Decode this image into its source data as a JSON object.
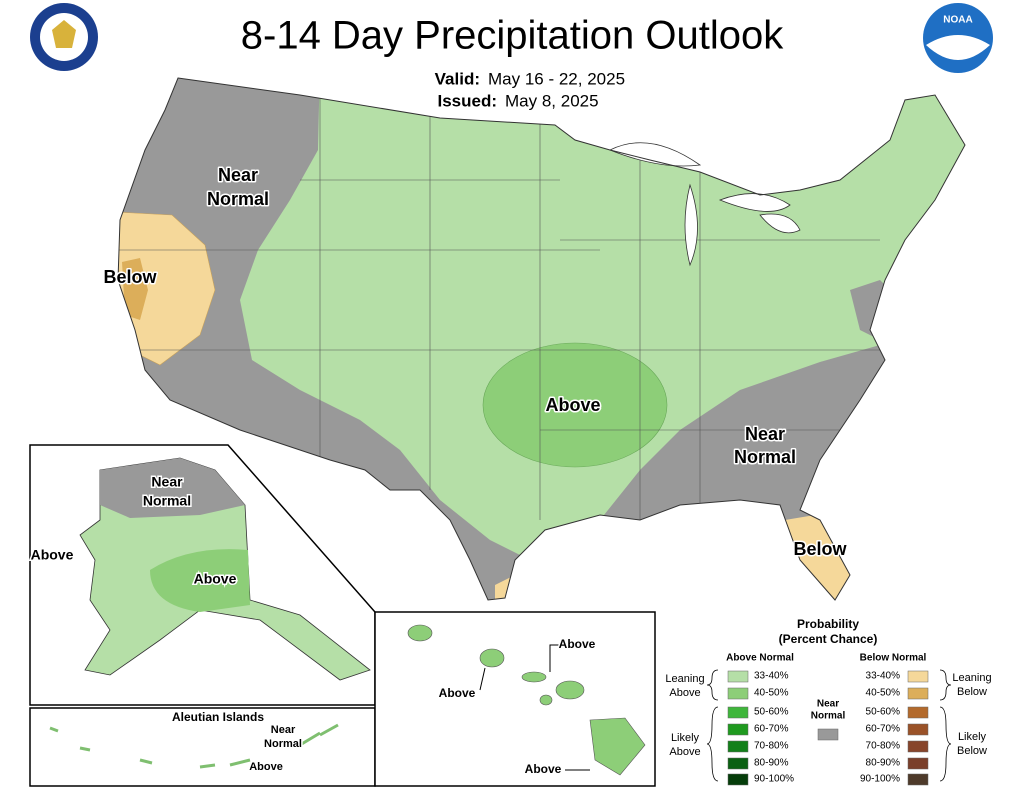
{
  "header": {
    "title": "8-14 Day Precipitation Outlook",
    "valid_label": "Valid:",
    "valid": "May 16 - 22, 2025",
    "issued_label": "Issued:",
    "issued": "May 8, 2025",
    "logo_text": "NOAA"
  },
  "map_labels": [
    {
      "lines": [
        "Near",
        "Normal"
      ]
    },
    {
      "lines": [
        "Below"
      ]
    },
    {
      "lines": [
        "Above"
      ]
    },
    {
      "lines": [
        "Near",
        "Normal"
      ]
    },
    {
      "lines": [
        "Below"
      ]
    }
  ],
  "alaska": {
    "labels": [
      {
        "lines": [
          "Near",
          "Normal"
        ]
      },
      {
        "lines": [
          "Above"
        ]
      },
      {
        "lines": [
          "Above"
        ]
      }
    ]
  },
  "aleutian": {
    "title": "Aleutian Islands",
    "labels": [
      {
        "lines": [
          "Near",
          "Normal"
        ]
      },
      {
        "lines": [
          "Above"
        ]
      }
    ]
  },
  "hawaii": {
    "labels": [
      "Above",
      "Above",
      "Above"
    ]
  },
  "legend": {
    "title_lines": [
      "Probability",
      "(Percent Chance)"
    ],
    "above_normal": "Above Normal",
    "below_normal": "Below Normal",
    "above_ranges": [
      "33-40%",
      "40-50%",
      "50-60%",
      "60-70%",
      "70-80%",
      "80-90%",
      "90-100%"
    ],
    "below_ranges": [
      "33-40%",
      "40-50%",
      "50-60%",
      "60-70%",
      "70-80%",
      "80-90%",
      "90-100%"
    ],
    "leaning_above": [
      "Leaning",
      "Above"
    ],
    "likely_above": [
      "Likely",
      "Above"
    ],
    "near_normal": [
      "Near",
      "Normal"
    ],
    "leaning_below": [
      "Leaning",
      "Below"
    ],
    "likely_below": [
      "Likely",
      "Below"
    ]
  }
}
